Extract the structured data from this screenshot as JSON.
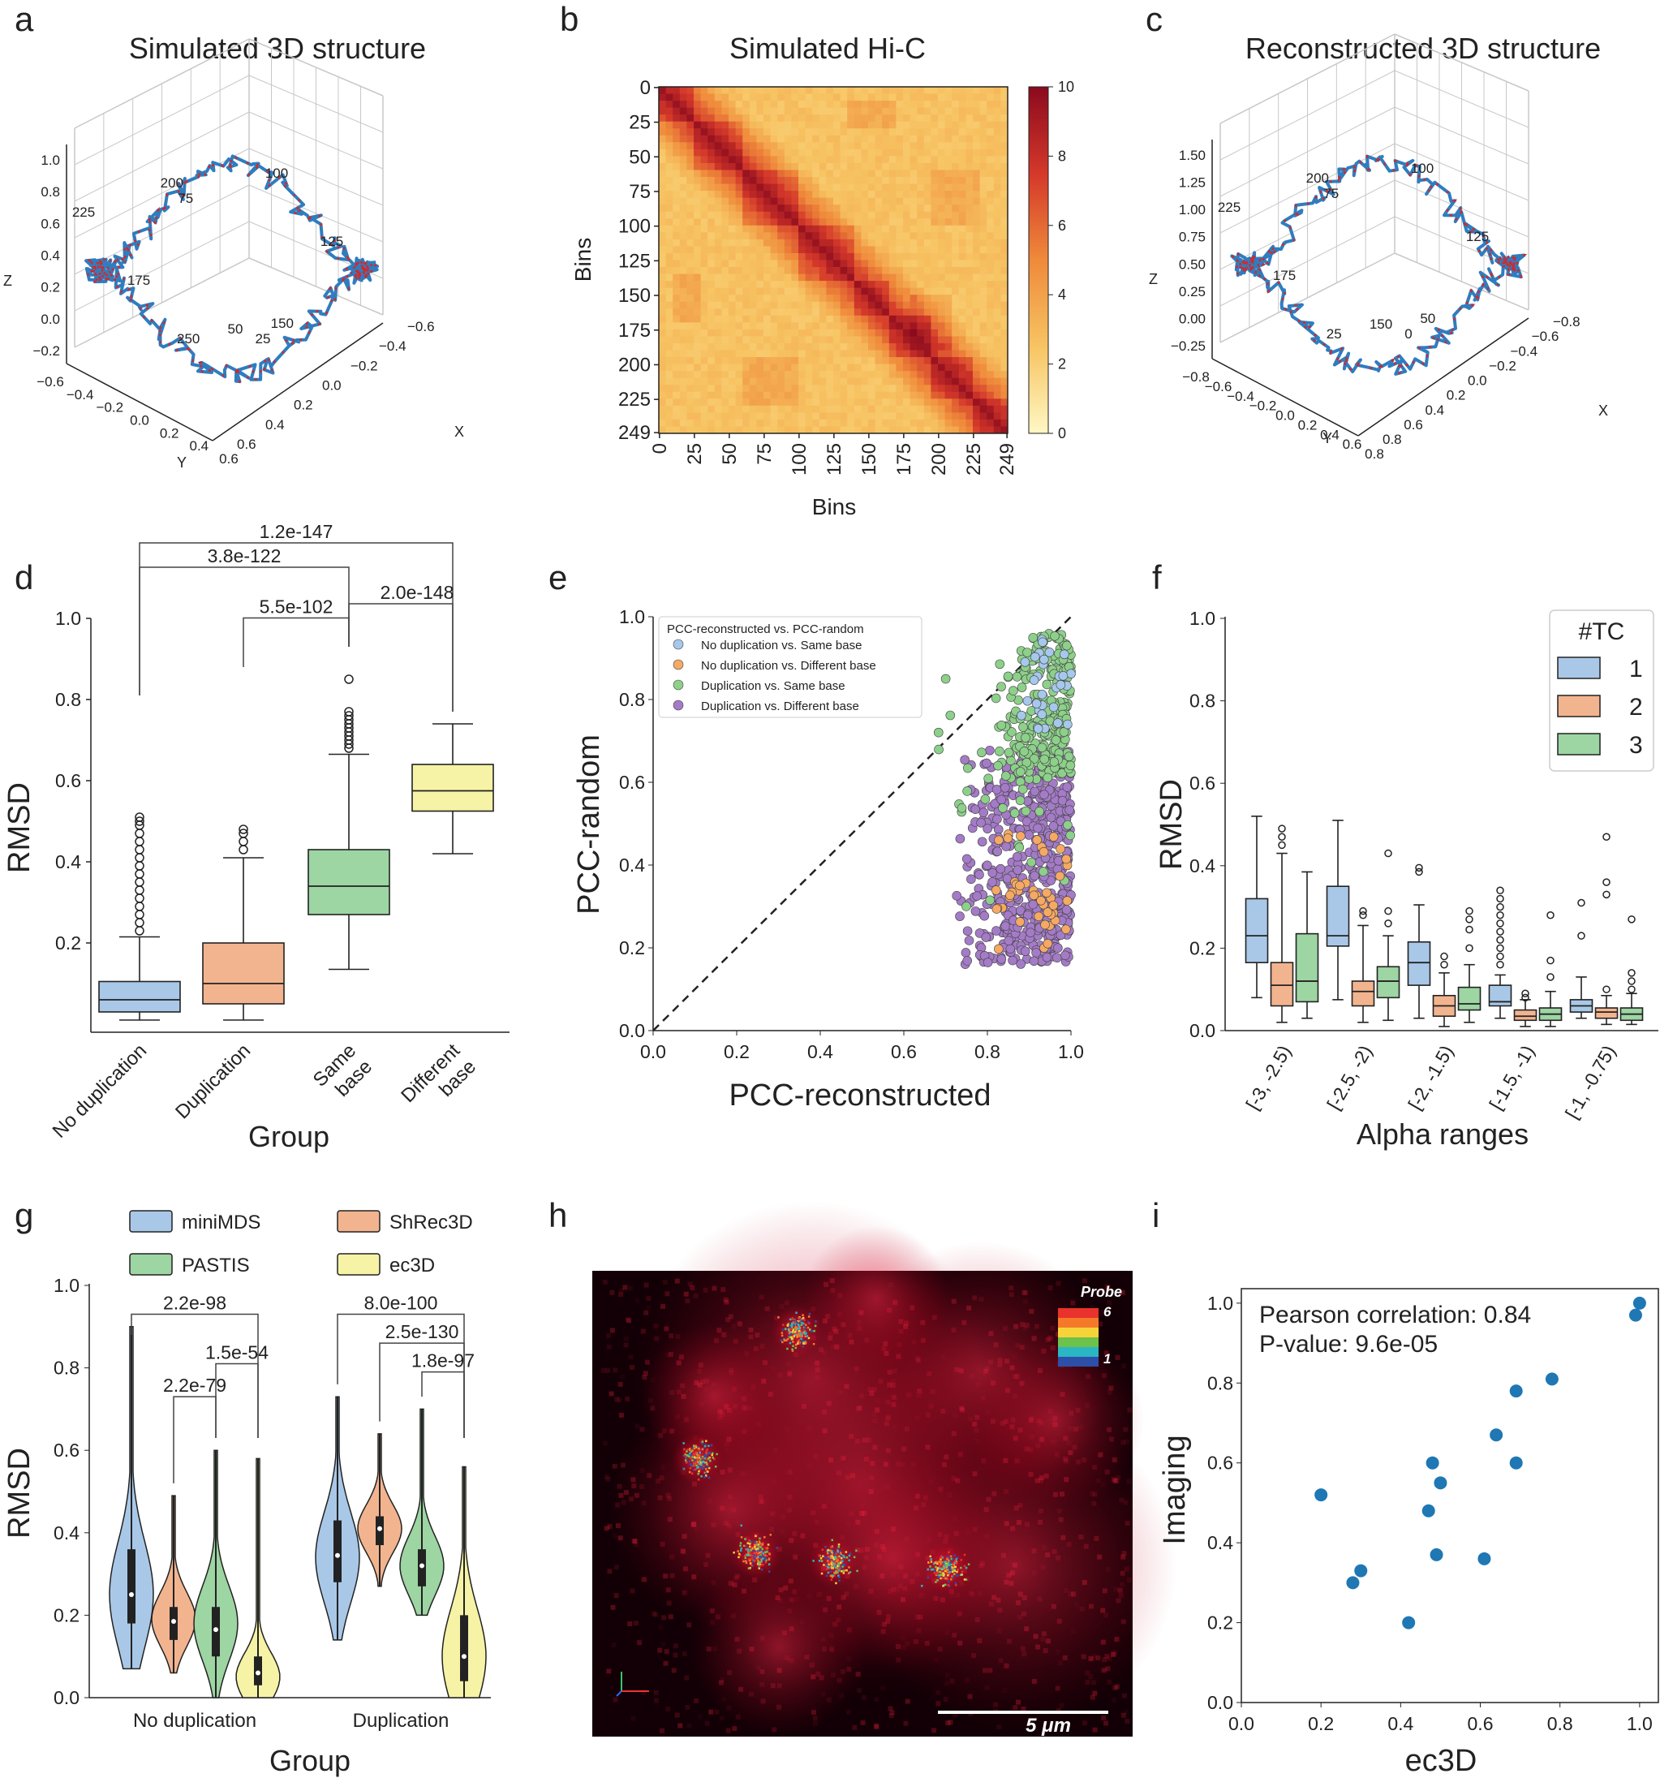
{
  "panel_letters": [
    "a",
    "b",
    "c",
    "d",
    "e",
    "f",
    "g",
    "h",
    "i"
  ],
  "chart_data": [
    {
      "panel": "a",
      "type": "scatter",
      "title": "Simulated 3D structure",
      "xlabel": "X",
      "ylabel": "Y",
      "zlabel": "Z",
      "xticks": [
        "−0.6",
        "−0.4",
        "−0.2",
        "0.0",
        "0.2",
        "0.4",
        "0.6"
      ],
      "yticks": [
        "−0.6",
        "−0.4",
        "−0.2",
        "0.0",
        "0.2",
        "0.4",
        "0.6"
      ],
      "zticks": [
        "1.0",
        "0.8",
        "0.6",
        "0.4",
        "0.2",
        "0.0",
        "−0.2"
      ],
      "point_labels": [
        "200",
        "75",
        "100",
        "225",
        "125",
        "175",
        "50",
        "150",
        "250",
        "25"
      ],
      "series_colors": [
        "#2f7dbf",
        "#d62728"
      ]
    },
    {
      "panel": "b",
      "type": "heatmap",
      "title": "Simulated Hi-C",
      "xlabel": "Bins",
      "ylabel": "Bins",
      "ticks": [
        "0",
        "25",
        "50",
        "75",
        "100",
        "125",
        "150",
        "175",
        "200",
        "225",
        "249"
      ],
      "colorbar": {
        "min": 0,
        "max": 10,
        "ticks": [
          "0",
          "2",
          "4",
          "6",
          "8",
          "10"
        ],
        "colors": [
          "#fff7c4",
          "#f7c463",
          "#ef8a3b",
          "#d4382a",
          "#8b0a1e"
        ]
      },
      "n_bins": 250,
      "tads": [
        [
          0,
          25
        ],
        [
          25,
          60
        ],
        [
          60,
          100
        ],
        [
          100,
          140
        ],
        [
          140,
          165
        ],
        [
          165,
          195
        ],
        [
          195,
          225
        ],
        [
          225,
          249
        ]
      ],
      "off_diagonal_blocks": [
        [
          10,
          30,
          135,
          170
        ],
        [
          60,
          100,
          195,
          230
        ],
        [
          195,
          230,
          60,
          100
        ],
        [
          135,
          170,
          10,
          30
        ],
        [
          150,
          190,
          180,
          210
        ]
      ]
    },
    {
      "panel": "c",
      "type": "scatter",
      "title": "Reconstructed 3D structure",
      "xlabel": "X",
      "ylabel": "Y",
      "zlabel": "Z",
      "xticks": [
        "−0.8",
        "−0.6",
        "−0.4",
        "−0.2",
        "0.0",
        "0.2",
        "0.4",
        "0.6",
        "0.8"
      ],
      "yticks": [
        "−0.8",
        "−0.6",
        "−0.4",
        "−0.2",
        "0.0",
        "0.2",
        "0.4",
        "0.6",
        "0.8"
      ],
      "zticks": [
        "1.50",
        "1.25",
        "1.00",
        "0.75",
        "0.50",
        "0.25",
        "0.00",
        "−0.25"
      ],
      "point_labels": [
        "200",
        "75",
        "100",
        "225",
        "125",
        "175",
        "150",
        "50",
        "25",
        "0"
      ]
    },
    {
      "panel": "d",
      "type": "box",
      "xlabel": "Group",
      "ylabel": "RMSD",
      "ylim": [
        0,
        1.0
      ],
      "yticks": [
        "0.2",
        "0.4",
        "0.6",
        "0.8",
        "1.0"
      ],
      "categories": [
        "No duplication",
        "Duplication",
        "Same base",
        "Different base"
      ],
      "category_lines": [
        [
          "No duplication"
        ],
        [
          "Duplication"
        ],
        [
          "Same",
          "base"
        ],
        [
          "Different",
          "base"
        ]
      ],
      "colors": [
        "#a9c8e8",
        "#f2b48f",
        "#9dd5a3",
        "#f6f3a6"
      ],
      "boxes": [
        {
          "whislo": 0.01,
          "q1": 0.03,
          "med": 0.06,
          "q3": 0.105,
          "whishi": 0.215,
          "fliers": [
            0.23,
            0.25,
            0.27,
            0.29,
            0.31,
            0.33,
            0.35,
            0.37,
            0.39,
            0.41,
            0.43,
            0.45,
            0.47,
            0.49,
            0.5,
            0.51
          ]
        },
        {
          "whislo": 0.01,
          "q1": 0.05,
          "med": 0.1,
          "q3": 0.2,
          "whishi": 0.41,
          "fliers": [
            0.43,
            0.45,
            0.47,
            0.48
          ]
        },
        {
          "whislo": 0.135,
          "q1": 0.27,
          "med": 0.34,
          "q3": 0.43,
          "whishi": 0.665,
          "fliers": [
            0.68,
            0.69,
            0.7,
            0.71,
            0.72,
            0.73,
            0.74,
            0.75,
            0.76,
            0.77,
            0.85
          ]
        },
        {
          "whislo": 0.42,
          "q1": 0.525,
          "med": 0.575,
          "q3": 0.64,
          "whishi": 0.74,
          "fliers": []
        }
      ],
      "annotations": [
        {
          "from": 0,
          "to": 3,
          "level": 1.15,
          "text": "1.2e-147"
        },
        {
          "from": 0,
          "to": 2,
          "level": 1.09,
          "text": "3.8e-122"
        },
        {
          "from": 2,
          "to": 3,
          "level": 1.0,
          "text": "2.0e-148"
        },
        {
          "from": 1,
          "to": 2,
          "level": 0.965,
          "text": "5.5e-102"
        }
      ]
    },
    {
      "panel": "e",
      "type": "scatter",
      "xlabel": "PCC-reconstructed",
      "ylabel": "PCC-random",
      "xlim": [
        0,
        1
      ],
      "ylim": [
        0,
        1
      ],
      "ticks": [
        "0.0",
        "0.2",
        "0.4",
        "0.6",
        "0.8",
        "1.0"
      ],
      "legend_title": "PCC-reconstructed vs. PCC-random",
      "series": [
        {
          "name": "No duplication vs. Same base",
          "color": "#a6c8ec"
        },
        {
          "name": "No duplication vs. Different base",
          "color": "#f5a963"
        },
        {
          "name": "Duplication vs. Same base",
          "color": "#8dd08a"
        },
        {
          "name": "Duplication vs. Different base",
          "color": "#a47bc7"
        }
      ]
    },
    {
      "panel": "f",
      "type": "box",
      "xlabel": "Alpha ranges",
      "ylabel": "RMSD",
      "ylim": [
        0,
        1.0
      ],
      "yticks": [
        "0.0",
        "0.2",
        "0.4",
        "0.6",
        "0.8",
        "1.0"
      ],
      "categories": [
        "[-3, -2.5)",
        "[-2.5, -2)",
        "[-2, -1.5)",
        "[-1.5, -1)",
        "[-1, -0.75)"
      ],
      "legend_title": "#TC",
      "legend": [
        "1",
        "2",
        "3"
      ],
      "colors": [
        "#a9c8e8",
        "#f2b48f",
        "#9dd5a3"
      ],
      "groups": [
        [
          {
            "whislo": 0.08,
            "q1": 0.165,
            "med": 0.23,
            "q3": 0.32,
            "whishi": 0.52,
            "fliers": []
          },
          {
            "whislo": 0.02,
            "q1": 0.06,
            "med": 0.11,
            "q3": 0.165,
            "whishi": 0.43,
            "fliers": [
              0.45,
              0.47,
              0.49
            ]
          },
          {
            "whislo": 0.03,
            "q1": 0.07,
            "med": 0.12,
            "q3": 0.235,
            "whishi": 0.385,
            "fliers": []
          }
        ],
        [
          {
            "whislo": 0.075,
            "q1": 0.205,
            "med": 0.23,
            "q3": 0.35,
            "whishi": 0.51,
            "fliers": []
          },
          {
            "whislo": 0.02,
            "q1": 0.06,
            "med": 0.095,
            "q3": 0.12,
            "whishi": 0.255,
            "fliers": [
              0.28,
              0.29
            ]
          },
          {
            "whislo": 0.025,
            "q1": 0.08,
            "med": 0.12,
            "q3": 0.155,
            "whishi": 0.23,
            "fliers": [
              0.26,
              0.29,
              0.43
            ]
          }
        ],
        [
          {
            "whislo": 0.03,
            "q1": 0.11,
            "med": 0.165,
            "q3": 0.215,
            "whishi": 0.305,
            "fliers": [
              0.385,
              0.395
            ]
          },
          {
            "whislo": 0.01,
            "q1": 0.035,
            "med": 0.06,
            "q3": 0.085,
            "whishi": 0.14,
            "fliers": [
              0.16,
              0.18
            ]
          },
          {
            "whislo": 0.02,
            "q1": 0.05,
            "med": 0.065,
            "q3": 0.105,
            "whishi": 0.16,
            "fliers": [
              0.2,
              0.245,
              0.27,
              0.29
            ]
          }
        ],
        [
          {
            "whislo": 0.03,
            "q1": 0.06,
            "med": 0.07,
            "q3": 0.11,
            "whishi": 0.135,
            "fliers": [
              0.16,
              0.18,
              0.2,
              0.22,
              0.24,
              0.26,
              0.28,
              0.3,
              0.32,
              0.34
            ]
          },
          {
            "whislo": 0.01,
            "q1": 0.025,
            "med": 0.035,
            "q3": 0.05,
            "whishi": 0.075,
            "fliers": [
              0.08,
              0.09
            ]
          },
          {
            "whislo": 0.01,
            "q1": 0.025,
            "med": 0.04,
            "q3": 0.055,
            "whishi": 0.095,
            "fliers": [
              0.13,
              0.17,
              0.28
            ]
          }
        ],
        [
          {
            "whislo": 0.03,
            "q1": 0.045,
            "med": 0.06,
            "q3": 0.075,
            "whishi": 0.13,
            "fliers": [
              0.23,
              0.31
            ]
          },
          {
            "whislo": 0.015,
            "q1": 0.03,
            "med": 0.045,
            "q3": 0.055,
            "whishi": 0.085,
            "fliers": [
              0.1,
              0.33,
              0.36,
              0.47
            ]
          },
          {
            "whislo": 0.015,
            "q1": 0.025,
            "med": 0.04,
            "q3": 0.055,
            "whishi": 0.09,
            "fliers": [
              0.1,
              0.12,
              0.14,
              0.27
            ]
          }
        ]
      ]
    },
    {
      "panel": "g",
      "type": "violin",
      "xlabel": "Group",
      "ylabel": "RMSD",
      "ylim": [
        0,
        1.0
      ],
      "yticks": [
        "0.0",
        "0.2",
        "0.4",
        "0.6",
        "0.8",
        "1.0"
      ],
      "categories": [
        "No duplication",
        "Duplication"
      ],
      "series": [
        {
          "name": "miniMDS",
          "color": "#a9c8e8"
        },
        {
          "name": "ShRec3D",
          "color": "#f2b48f"
        },
        {
          "name": "PASTIS",
          "color": "#9dd5a3"
        },
        {
          "name": "ec3D",
          "color": "#f6f3a6"
        }
      ],
      "violins": [
        [
          {
            "min": 0.07,
            "q1": 0.18,
            "med": 0.25,
            "q3": 0.36,
            "max": 0.9,
            "mode": 0.25
          },
          {
            "min": 0.06,
            "q1": 0.14,
            "med": 0.185,
            "q3": 0.22,
            "max": 0.49,
            "mode": 0.19
          },
          {
            "min": 0.0,
            "q1": 0.1,
            "med": 0.165,
            "q3": 0.22,
            "max": 0.6,
            "mode": 0.18
          },
          {
            "min": 0.0,
            "q1": 0.03,
            "med": 0.06,
            "q3": 0.1,
            "max": 0.58,
            "mode": 0.05
          }
        ],
        [
          {
            "min": 0.14,
            "q1": 0.28,
            "med": 0.345,
            "q3": 0.43,
            "max": 0.73,
            "mode": 0.34
          },
          {
            "min": 0.27,
            "q1": 0.37,
            "med": 0.41,
            "q3": 0.44,
            "max": 0.64,
            "mode": 0.41
          },
          {
            "min": 0.2,
            "q1": 0.27,
            "med": 0.32,
            "q3": 0.36,
            "max": 0.7,
            "mode": 0.32
          },
          {
            "min": 0.0,
            "q1": 0.04,
            "med": 0.1,
            "q3": 0.2,
            "max": 0.56,
            "mode": 0.1
          }
        ]
      ],
      "annotations": [
        {
          "group": 0,
          "from": 0,
          "to": 3,
          "level": 0.93,
          "text": "2.2e-98"
        },
        {
          "group": 0,
          "from": 2,
          "to": 3,
          "level": 0.81,
          "text": "1.5e-54"
        },
        {
          "group": 0,
          "from": 1,
          "to": 2,
          "level": 0.73,
          "text": "2.2e-79"
        },
        {
          "group": 1,
          "from": 0,
          "to": 3,
          "level": 0.93,
          "text": "8.0e-100"
        },
        {
          "group": 1,
          "from": 1,
          "to": 3,
          "level": 0.86,
          "text": "2.5e-130"
        },
        {
          "group": 1,
          "from": 2,
          "to": 3,
          "level": 0.79,
          "text": "1.8e-97"
        }
      ]
    },
    {
      "panel": "h",
      "type": "image",
      "probe_label": "Probe",
      "probe_max": "6",
      "probe_min": "1",
      "scalebar_label": "5 μm",
      "probe_colors": [
        "#e8322b",
        "#f47a2a",
        "#f7d33a",
        "#6cc24a",
        "#2bb6c4",
        "#2d4fa8"
      ]
    },
    {
      "panel": "i",
      "type": "scatter",
      "xlabel": "ec3D",
      "ylabel": "Imaging",
      "xlim": [
        0,
        1.0
      ],
      "ylim": [
        0,
        1.0
      ],
      "ticks": [
        "0.0",
        "0.2",
        "0.4",
        "0.6",
        "0.8",
        "1.0"
      ],
      "annotation_lines": [
        "Pearson correlation: 0.84",
        "P-value: 9.6e-05"
      ],
      "color": "#1f77b4",
      "x": [
        0.2,
        0.28,
        0.3,
        0.42,
        0.47,
        0.48,
        0.49,
        0.5,
        0.61,
        0.64,
        0.69,
        0.69,
        0.78,
        0.99,
        1.0
      ],
      "y": [
        0.52,
        0.3,
        0.33,
        0.2,
        0.48,
        0.6,
        0.37,
        0.55,
        0.36,
        0.67,
        0.78,
        0.6,
        0.81,
        0.97,
        1.0
      ]
    }
  ]
}
